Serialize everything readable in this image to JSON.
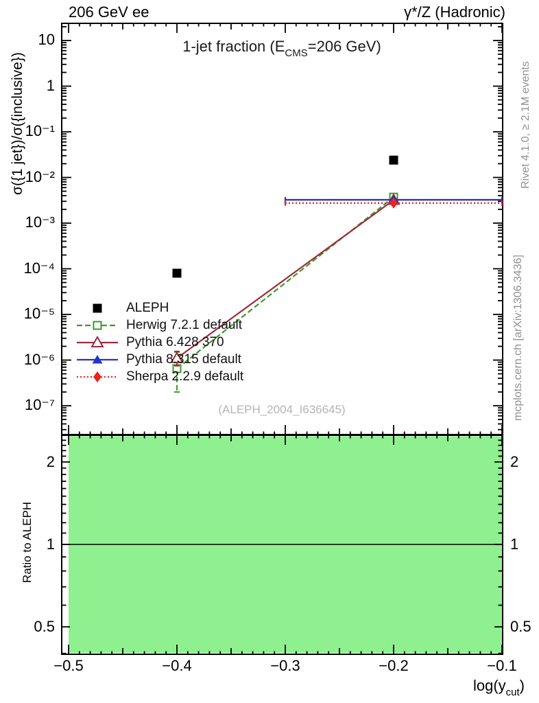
{
  "header": {
    "left": "206 GeV ee",
    "right": "γ*/Z (Hadronic)"
  },
  "title": {
    "pre": "1-jet fraction (E",
    "sub": "CMS",
    "post": "=206 GeV)"
  },
  "watermark": "(ALEPH_2004_I636645)",
  "right_margin": {
    "top_note": "Rivet 4.1.0, ≥ 2.1M events",
    "bottom_note": "mcplots.cern.ch [arXiv:1306.3436]"
  },
  "chart_data": {
    "type": "line",
    "title": "1-jet fraction (E_CMS=206 GeV)",
    "xlabel": {
      "pre": "log(y",
      "sub": "cut",
      "post": ")"
    },
    "ylabel": "σ({1 jet})/σ({inclusive})",
    "ratio_ylabel": "Ratio to ALEPH",
    "x_range": [
      -0.5,
      -0.1
    ],
    "y_range": [
      2.3e-08,
      24
    ],
    "y_scale": "log",
    "ratio_range": [
      0.4,
      2.5
    ],
    "x_ticks": [
      -0.5,
      -0.4,
      -0.3,
      -0.2,
      -0.1
    ],
    "x_tick_labels": [
      "−0.5",
      "−0.4",
      "−0.3",
      "−0.2",
      "−0.1"
    ],
    "y_tick_exps": [
      1,
      0,
      -1,
      -2,
      -3,
      -4,
      -5,
      -6,
      -7
    ],
    "y_tick_labels": [
      "10",
      "1",
      "10⁻¹",
      "10⁻²",
      "10⁻³",
      "10⁻⁴",
      "10⁻⁵",
      "10⁻⁶",
      "10⁻⁷"
    ],
    "ratio_ticks": {
      "values": [
        2,
        1,
        0.5
      ],
      "labels": [
        "2",
        "1",
        "0.5"
      ]
    },
    "ratio_reference_line": 1,
    "ratio_band": {
      "color": "#8ff08f",
      "x_lo": -0.5,
      "x_hi": -0.1,
      "covers_full_height": true
    },
    "series": [
      {
        "name": "ALEPH",
        "marker": "square-filled",
        "color": "#000000",
        "line": "none",
        "points": [
          {
            "x": -0.4,
            "y": 8e-05
          },
          {
            "x": -0.2,
            "y": 0.024
          }
        ]
      },
      {
        "name": "Herwig 7.2.1 default",
        "marker": "square-open",
        "color": "#3a9b27",
        "line": "dashed",
        "points": [
          {
            "x": -0.4,
            "y": 6.5e-07,
            "yerr_lo": 2e-07,
            "yerr_hi": 1.5e-06
          },
          {
            "x": -0.2,
            "y": 0.0037
          }
        ]
      },
      {
        "name": "Pythia 6.428 370",
        "marker": "triangle-open",
        "color": "#9e2b3b",
        "line": "solid",
        "points": [
          {
            "x": -0.4,
            "y": 1.1e-06,
            "yerr_lo": 7.5e-07,
            "yerr_hi": 1.55e-06
          },
          {
            "x": -0.2,
            "y": 0.0032
          }
        ]
      },
      {
        "name": "Pythia 8.315 default",
        "marker": "triangle-filled",
        "color": "#2233cc",
        "line": "solid",
        "points": [
          {
            "x": -0.2,
            "y": 0.00324,
            "xbin": [
              -0.3,
              -0.1
            ]
          }
        ]
      },
      {
        "name": "Sherpa 2.2.9 default",
        "marker": "diamond-filled",
        "color": "#ee2418",
        "line": "dotted",
        "points": [
          {
            "x": -0.2,
            "y": 0.00275,
            "xbin": [
              -0.3,
              -0.1
            ]
          }
        ]
      }
    ]
  }
}
